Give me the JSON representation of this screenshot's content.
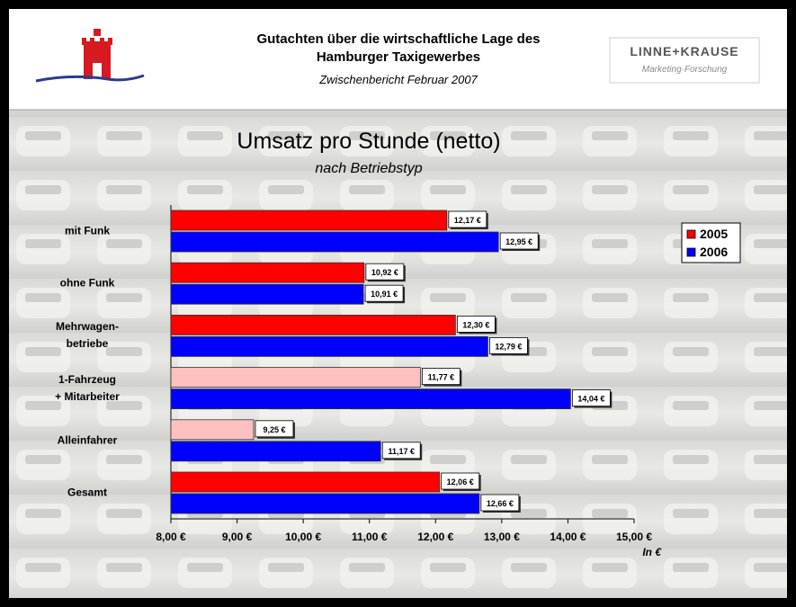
{
  "header": {
    "title_lines": [
      "Gutachten über die wirtschaftliche Lage des",
      "Hamburger Taxigewerbes"
    ],
    "subtitle": "Zwischenbericht Februar 2007",
    "logo_name": "LINNE+KRAUSE",
    "logo_tagline": "Marketing·Forschung"
  },
  "chart_data": {
    "type": "barh",
    "title": "Umsatz pro Stunde (netto)",
    "subtitle": "nach Betriebstyp",
    "x_label": "In €",
    "categories": [
      "mit Funk",
      "ohne Funk",
      "Mehrwagen-\nbetriebe",
      "1-Fahrzeug\n+ Mitarbeiter",
      "Alleinfahrer",
      "Gesamt"
    ],
    "series": [
      {
        "name": "2005",
        "color": "#ff0000",
        "colors": [
          "#ff0000",
          "#ff0000",
          "#ff0000",
          "#ffc0c0",
          "#ffc0c0",
          "#ff0000"
        ],
        "values": [
          12.17,
          10.92,
          12.3,
          11.77,
          9.25,
          12.06
        ],
        "value_labels": [
          "12,17 €",
          "10,92 €",
          "12,30 €",
          "11,77 €",
          "9,25 €",
          "12,06 €"
        ]
      },
      {
        "name": "2006",
        "color": "#0000ff",
        "colors": [
          "#0000ff",
          "#0000ff",
          "#0000ff",
          "#0000ff",
          "#0000ff",
          "#0000ff"
        ],
        "values": [
          12.95,
          10.91,
          12.79,
          14.04,
          11.17,
          12.66
        ],
        "value_labels": [
          "12,95 €",
          "10,91 €",
          "12,79 €",
          "14,04 €",
          "11,17 €",
          "12,66 €"
        ]
      }
    ],
    "xlim": [
      8,
      15
    ],
    "xticks": [
      {
        "value": 8,
        "label": "8,00 €"
      },
      {
        "value": 9,
        "label": "9,00 €"
      },
      {
        "value": 10,
        "label": "10,00 €"
      },
      {
        "value": 11,
        "label": "11,00 €"
      },
      {
        "value": 12,
        "label": "12,00 €"
      },
      {
        "value": 13,
        "label": "13,00 €"
      },
      {
        "value": 14,
        "label": "14,00 €"
      },
      {
        "value": 15,
        "label": "15,00 €"
      }
    ],
    "legend": "right"
  }
}
